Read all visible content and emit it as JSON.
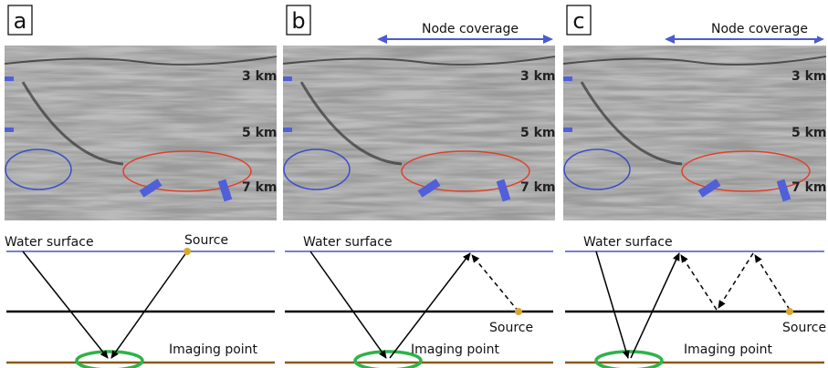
{
  "panels": [
    {
      "label": "a",
      "depth_labels": [
        "3 km",
        "5 km",
        "7 km"
      ],
      "diagram": {
        "water_surface": "Water surface",
        "source": "Source",
        "imaging_point": "Imaging point"
      }
    },
    {
      "label": "b",
      "coverage": "Node coverage",
      "depth_labels": [
        "3 km",
        "5 km",
        "7 km"
      ],
      "diagram": {
        "water_surface": "Water surface",
        "source": "Source",
        "imaging_point": "Imaging point"
      }
    },
    {
      "label": "c",
      "coverage": "Node coverage",
      "depth_labels": [
        "3 km",
        "5 km",
        "7 km"
      ],
      "diagram": {
        "water_surface": "Water surface",
        "source": "Source",
        "imaging_point": "Imaging point"
      }
    }
  ]
}
